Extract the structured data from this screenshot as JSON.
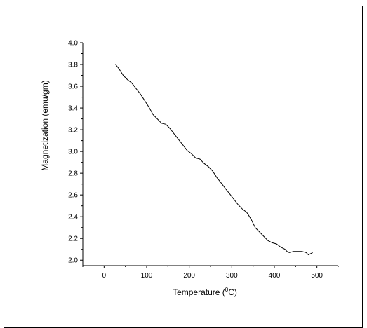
{
  "chart_data": {
    "type": "line",
    "title": "",
    "xlabel": "Temperature (",
    "xlabel_sup": "0",
    "xlabel_tail": "C)",
    "ylabel": "Magnetization (emu/gm)",
    "xlim": [
      -50,
      550
    ],
    "ylim": [
      1.95,
      4.0
    ],
    "xticks": [
      0,
      100,
      200,
      300,
      400,
      500
    ],
    "xtick_labels": [
      "0",
      "100",
      "200",
      "300",
      "400",
      "500"
    ],
    "yticks": [
      2.0,
      2.2,
      2.4,
      2.6,
      2.8,
      3.0,
      3.2,
      3.4,
      3.6,
      3.8,
      4.0
    ],
    "ytick_labels": [
      "2.0",
      "2.2",
      "2.4",
      "2.6",
      "2.8",
      "3.0",
      "3.2",
      "3.4",
      "3.6",
      "3.8",
      "4.0"
    ],
    "grid": false,
    "legend": "none",
    "line_color": "#000000",
    "series": [
      {
        "x": [
          27,
          35,
          45,
          55,
          65,
          75,
          85,
          95,
          105,
          115,
          125,
          135,
          145,
          155,
          165,
          175,
          185,
          195,
          205,
          215,
          225,
          235,
          245,
          255,
          265,
          275,
          285,
          295,
          305,
          315,
          325,
          335,
          345,
          355,
          365,
          375,
          385,
          395,
          405,
          415,
          425,
          430,
          435,
          445,
          455,
          465,
          475,
          480,
          490
        ],
        "y": [
          3.8,
          3.76,
          3.7,
          3.66,
          3.63,
          3.58,
          3.53,
          3.47,
          3.41,
          3.34,
          3.3,
          3.26,
          3.25,
          3.21,
          3.16,
          3.11,
          3.06,
          3.01,
          2.98,
          2.94,
          2.93,
          2.89,
          2.86,
          2.82,
          2.76,
          2.71,
          2.66,
          2.61,
          2.56,
          2.51,
          2.47,
          2.44,
          2.38,
          2.3,
          2.26,
          2.22,
          2.18,
          2.16,
          2.15,
          2.12,
          2.1,
          2.08,
          2.07,
          2.08,
          2.08,
          2.08,
          2.07,
          2.05,
          2.07
        ]
      }
    ]
  }
}
